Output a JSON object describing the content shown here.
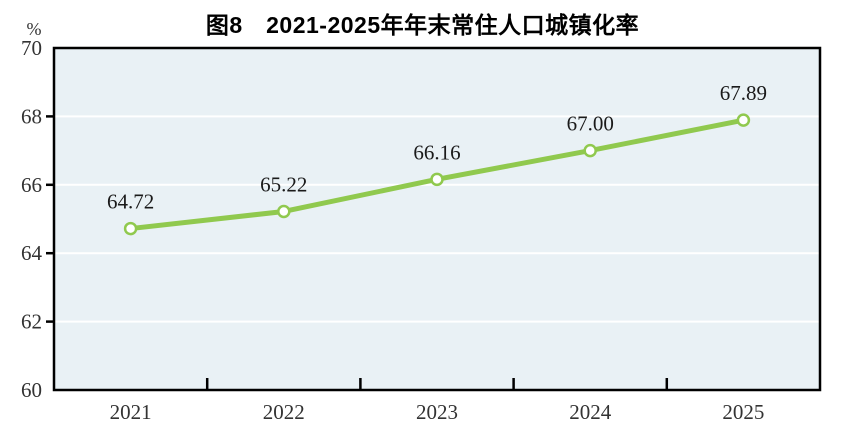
{
  "figure": {
    "title": "图8　2021-2025年年末常住人口城镇化率",
    "unit_label": "%"
  },
  "chart_data": {
    "type": "line",
    "title": "图8　2021-2025年年末常住人口城镇化率",
    "xlabel": "",
    "ylabel": "%",
    "categories": [
      "2021",
      "2022",
      "2023",
      "2024",
      "2025"
    ],
    "series": [
      {
        "name": "年末常住人口城镇化率",
        "values": [
          64.72,
          65.22,
          66.16,
          67.0,
          67.89
        ]
      }
    ],
    "value_labels": [
      "64.72",
      "65.22",
      "66.16",
      "67.00",
      "67.89"
    ],
    "ylim": [
      60,
      70
    ],
    "yticks": [
      60,
      62,
      64,
      66,
      68,
      70
    ],
    "grid": "horizontal-white-lines",
    "legend_position": "none",
    "colors": {
      "line": "#90c94e",
      "marker_fill": "#ffffff",
      "plot_bg": "#e9f1f5",
      "grid": "#ffffff",
      "axis": "#000000",
      "tick_text": "#333333",
      "value_text": "#1a1a1a"
    }
  }
}
